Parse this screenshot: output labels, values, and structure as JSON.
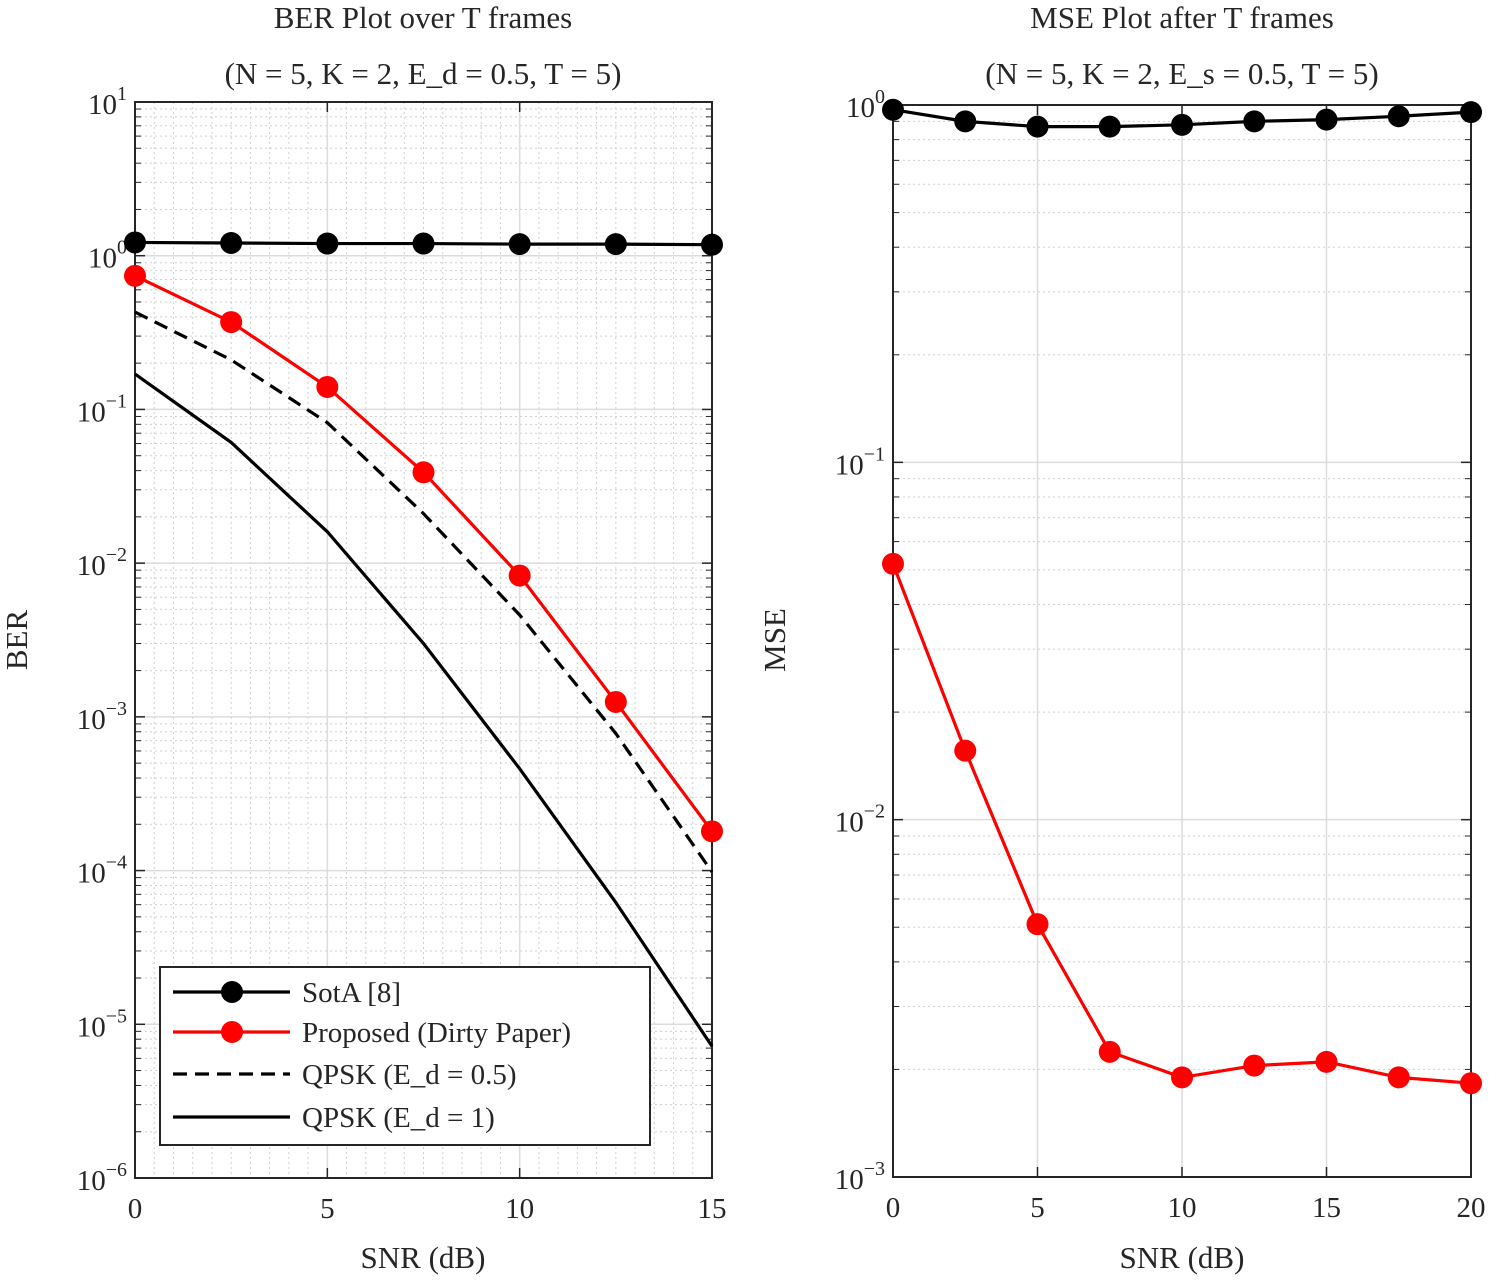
{
  "chart_data": [
    {
      "type": "line",
      "title": "BER Plot over T frames",
      "subtitle": "(N = 5, K = 2, E_d = 0.5, T = 5)",
      "xlabel": "SNR (dB)",
      "ylabel": "BER",
      "xlim": [
        0,
        15
      ],
      "ylim": [
        1e-06,
        10
      ],
      "yscale": "log",
      "xticks": [
        0,
        5,
        10,
        15
      ],
      "yticks_exp": [
        1,
        0,
        -1,
        -2,
        -3,
        -4,
        -5,
        -6
      ],
      "grid": true,
      "legend_placement": "bottom-left",
      "x": [
        0,
        2.5,
        5,
        7.5,
        10,
        12.5,
        15
      ],
      "series": [
        {
          "name": "SotA [8]",
          "color": "#000000",
          "style": "solid",
          "marker": true,
          "values": [
            1.22,
            1.21,
            1.2,
            1.2,
            1.19,
            1.19,
            1.18
          ]
        },
        {
          "name": "Proposed (Dirty Paper)",
          "color": "#ff0000",
          "style": "solid",
          "marker": true,
          "values": [
            0.74,
            0.37,
            0.14,
            0.039,
            0.0083,
            0.00125,
            0.00018
          ]
        },
        {
          "name": "QPSK (E_d = 0.5)",
          "color": "#000000",
          "style": "dashed",
          "marker": false,
          "values": [
            0.43,
            0.21,
            0.082,
            0.021,
            0.0046,
            0.00078,
            9.8e-05
          ]
        },
        {
          "name": "QPSK (E_d = 1)",
          "color": "#000000",
          "style": "solid",
          "marker": false,
          "values": [
            0.17,
            0.061,
            0.016,
            0.003,
            0.00046,
            6.2e-05,
            7.2e-06
          ]
        }
      ]
    },
    {
      "type": "line",
      "title": "MSE Plot after T frames",
      "subtitle": "(N = 5, K = 2, E_s = 0.5, T = 5)",
      "xlabel": "SNR (dB)",
      "ylabel": "MSE",
      "xlim": [
        0,
        20
      ],
      "ylim": [
        0.001,
        1
      ],
      "yscale": "log",
      "xticks": [
        0,
        5,
        10,
        15,
        20
      ],
      "yticks_exp": [
        0,
        -1,
        -2,
        -3
      ],
      "grid": true,
      "x": [
        0,
        2.5,
        5,
        7.5,
        10,
        12.5,
        15,
        17.5,
        20
      ],
      "series": [
        {
          "name": "SotA",
          "color": "#000000",
          "style": "solid",
          "marker": true,
          "values": [
            0.97,
            0.9,
            0.87,
            0.87,
            0.88,
            0.9,
            0.91,
            0.93,
            0.955
          ]
        },
        {
          "name": "Proposed",
          "color": "#ff0000",
          "style": "solid",
          "marker": true,
          "values": [
            0.052,
            0.0156,
            0.0051,
            0.00224,
            0.0019,
            0.00205,
            0.0021,
            0.0019,
            0.00183
          ]
        }
      ]
    }
  ]
}
